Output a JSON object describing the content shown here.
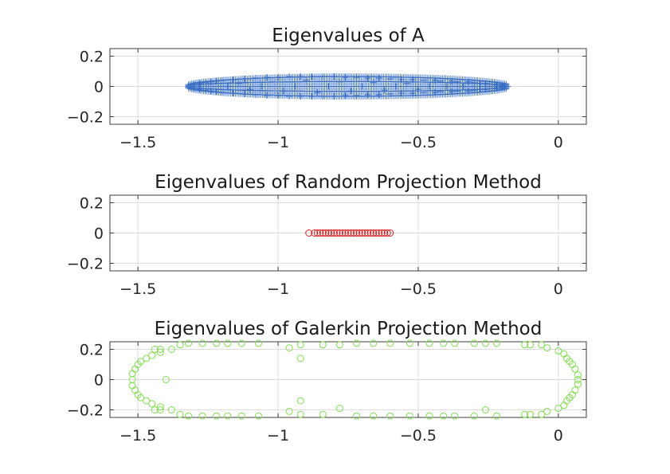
{
  "chart_data": [
    {
      "type": "scatter",
      "title": "Eigenvalues of A",
      "xlabel": "",
      "ylabel": "",
      "xlim": [
        -1.6,
        0.1
      ],
      "ylim": [
        -0.25,
        0.25
      ],
      "xticks": [
        -1.5,
        -1,
        -0.5,
        0
      ],
      "xtick_labels": [
        "−1.5",
        "−1",
        "−0.5",
        "0"
      ],
      "yticks": [
        0.2,
        0,
        -0.2
      ],
      "ytick_labels": [
        "0.2",
        "0",
        "−0.2"
      ],
      "grid": true,
      "marker": "+",
      "color": "#3a6fc4",
      "series": [
        {
          "points": [
            [
              -1.32,
              0.0
            ],
            [
              -1.3,
              0.01
            ],
            [
              -1.3,
              -0.01
            ],
            [
              -1.28,
              0.02
            ],
            [
              -1.28,
              -0.02
            ],
            [
              -1.26,
              0.025
            ],
            [
              -1.26,
              -0.025
            ],
            [
              -1.24,
              0.03
            ],
            [
              -1.24,
              -0.03
            ],
            [
              -1.22,
              0.035
            ],
            [
              -1.22,
              -0.035
            ],
            [
              -1.2,
              0.04
            ],
            [
              -1.2,
              -0.04
            ],
            [
              -1.18,
              0.0
            ],
            [
              -1.16,
              0.045
            ],
            [
              -1.16,
              -0.045
            ],
            [
              -1.14,
              0.02
            ],
            [
              -1.12,
              0.05
            ],
            [
              -1.12,
              -0.05
            ],
            [
              -1.1,
              -0.02
            ],
            [
              -1.08,
              0.055
            ],
            [
              -1.08,
              -0.055
            ],
            [
              -1.06,
              0.0
            ],
            [
              -1.04,
              0.06
            ],
            [
              -1.04,
              -0.06
            ],
            [
              -1.02,
              0.03
            ],
            [
              -1.0,
              0.06
            ],
            [
              -1.0,
              -0.06
            ],
            [
              -0.98,
              -0.03
            ],
            [
              -0.96,
              0.065
            ],
            [
              -0.96,
              -0.065
            ],
            [
              -0.94,
              0.0
            ],
            [
              -0.92,
              0.065
            ],
            [
              -0.92,
              -0.065
            ],
            [
              -0.9,
              0.04
            ],
            [
              -0.88,
              0.065
            ],
            [
              -0.88,
              -0.065
            ],
            [
              -0.86,
              -0.04
            ],
            [
              -0.84,
              0.065
            ],
            [
              -0.84,
              -0.065
            ],
            [
              -0.82,
              0.0
            ],
            [
              -0.8,
              0.065
            ],
            [
              -0.8,
              -0.065
            ],
            [
              -0.78,
              0.03
            ],
            [
              -0.76,
              0.06
            ],
            [
              -0.76,
              -0.06
            ],
            [
              -0.74,
              -0.03
            ],
            [
              -0.72,
              0.06
            ],
            [
              -0.72,
              -0.06
            ],
            [
              -0.7,
              0.0
            ],
            [
              -0.68,
              0.055
            ],
            [
              -0.68,
              -0.055
            ],
            [
              -0.66,
              0.025
            ],
            [
              -0.64,
              0.055
            ],
            [
              -0.64,
              -0.055
            ],
            [
              -0.62,
              -0.025
            ],
            [
              -0.6,
              0.05
            ],
            [
              -0.6,
              -0.05
            ],
            [
              -0.58,
              0.0
            ],
            [
              -0.56,
              0.045
            ],
            [
              -0.56,
              -0.045
            ],
            [
              -0.54,
              0.02
            ],
            [
              -0.52,
              0.045
            ],
            [
              -0.52,
              -0.045
            ],
            [
              -0.5,
              -0.02
            ],
            [
              -0.48,
              0.04
            ],
            [
              -0.48,
              -0.04
            ],
            [
              -0.46,
              0.0
            ],
            [
              -0.44,
              0.04
            ],
            [
              -0.44,
              -0.04
            ],
            [
              -0.42,
              0.035
            ],
            [
              -0.42,
              -0.035
            ],
            [
              -0.4,
              0.0
            ],
            [
              -0.38,
              0.035
            ],
            [
              -0.38,
              -0.035
            ],
            [
              -0.36,
              0.03
            ],
            [
              -0.36,
              -0.03
            ],
            [
              -0.34,
              0.0
            ],
            [
              -0.32,
              0.03
            ],
            [
              -0.32,
              -0.03
            ],
            [
              -0.3,
              0.025
            ],
            [
              -0.3,
              -0.025
            ],
            [
              -0.28,
              0.02
            ],
            [
              -0.28,
              -0.02
            ],
            [
              -0.26,
              0.02
            ],
            [
              -0.26,
              -0.02
            ],
            [
              -0.24,
              0.015
            ],
            [
              -0.24,
              -0.015
            ],
            [
              -0.22,
              0.01
            ],
            [
              -0.22,
              -0.01
            ],
            [
              -0.2,
              0.005
            ],
            [
              -0.2,
              -0.005
            ],
            [
              -0.18,
              0.0
            ]
          ]
        }
      ]
    },
    {
      "type": "scatter",
      "title": "Eigenvalues of Random Projection Method",
      "xlabel": "",
      "ylabel": "",
      "xlim": [
        -1.6,
        0.1
      ],
      "ylim": [
        -0.25,
        0.25
      ],
      "xticks": [
        -1.5,
        -1,
        -0.5,
        0
      ],
      "xtick_labels": [
        "−1.5",
        "−1",
        "−0.5",
        "0"
      ],
      "yticks": [
        0.2,
        0,
        -0.2
      ],
      "ytick_labels": [
        "0.2",
        "0",
        "−0.2"
      ],
      "grid": true,
      "marker": "o",
      "color": "#d62020",
      "series": [
        {
          "points": [
            [
              -0.89,
              0
            ],
            [
              -0.87,
              0
            ],
            [
              -0.86,
              0
            ],
            [
              -0.85,
              0
            ],
            [
              -0.84,
              0
            ],
            [
              -0.83,
              0
            ],
            [
              -0.82,
              0
            ],
            [
              -0.81,
              0
            ],
            [
              -0.8,
              0
            ],
            [
              -0.79,
              0
            ],
            [
              -0.78,
              0
            ],
            [
              -0.77,
              0
            ],
            [
              -0.76,
              0
            ],
            [
              -0.75,
              0
            ],
            [
              -0.74,
              0
            ],
            [
              -0.73,
              0
            ],
            [
              -0.72,
              0
            ],
            [
              -0.71,
              0
            ],
            [
              -0.7,
              0
            ],
            [
              -0.69,
              0
            ],
            [
              -0.68,
              0
            ],
            [
              -0.67,
              0
            ],
            [
              -0.66,
              0
            ],
            [
              -0.65,
              0
            ],
            [
              -0.64,
              0
            ],
            [
              -0.63,
              0
            ],
            [
              -0.62,
              0
            ],
            [
              -0.61,
              0
            ],
            [
              -0.6,
              0
            ]
          ]
        }
      ]
    },
    {
      "type": "scatter",
      "title": "Eigenvalues of Galerkin Projection Method",
      "xlabel": "",
      "ylabel": "",
      "xlim": [
        -1.6,
        0.1
      ],
      "ylim": [
        -0.25,
        0.25
      ],
      "xticks": [
        -1.5,
        -1,
        -0.5,
        0
      ],
      "xtick_labels": [
        "−1.5",
        "−1",
        "−0.5",
        "0"
      ],
      "yticks": [
        0.2,
        0,
        -0.2
      ],
      "ytick_labels": [
        "0.2",
        "0",
        "−0.2"
      ],
      "grid": true,
      "marker": "o",
      "color": "#7ee04a",
      "series": [
        {
          "points": [
            [
              -1.52,
              0.0
            ],
            [
              -1.52,
              0.04
            ],
            [
              -1.52,
              -0.04
            ],
            [
              -1.51,
              0.07
            ],
            [
              -1.51,
              -0.07
            ],
            [
              -1.5,
              0.1
            ],
            [
              -1.5,
              -0.1
            ],
            [
              -1.49,
              0.12
            ],
            [
              -1.49,
              -0.12
            ],
            [
              -1.47,
              0.14
            ],
            [
              -1.47,
              -0.14
            ],
            [
              -1.45,
              0.16
            ],
            [
              -1.45,
              -0.16
            ],
            [
              -1.42,
              0.18
            ],
            [
              -1.42,
              -0.18
            ],
            [
              -1.38,
              0.2
            ],
            [
              -1.38,
              -0.2
            ],
            [
              -1.35,
              0.23
            ],
            [
              -1.35,
              -0.23
            ],
            [
              -1.32,
              0.24
            ],
            [
              -1.32,
              -0.24
            ],
            [
              -1.27,
              0.24
            ],
            [
              -1.27,
              -0.24
            ],
            [
              -1.22,
              0.24
            ],
            [
              -1.22,
              -0.24
            ],
            [
              -1.18,
              0.24
            ],
            [
              -1.18,
              -0.24
            ],
            [
              -1.13,
              0.24
            ],
            [
              -1.13,
              -0.24
            ],
            [
              -1.07,
              0.24
            ],
            [
              -1.07,
              -0.24
            ],
            [
              -1.42,
              0.2
            ],
            [
              -1.42,
              -0.2
            ],
            [
              -1.44,
              0.2
            ],
            [
              -1.44,
              -0.2
            ],
            [
              -1.4,
              0.0
            ],
            [
              -0.96,
              0.21
            ],
            [
              -0.96,
              -0.21
            ],
            [
              -0.92,
              0.14
            ],
            [
              -0.92,
              -0.14
            ],
            [
              -0.92,
              0.23
            ],
            [
              -0.92,
              -0.23
            ],
            [
              -0.84,
              0.23
            ],
            [
              -0.84,
              -0.23
            ],
            [
              -0.78,
              0.23
            ],
            [
              -0.78,
              -0.19
            ],
            [
              -0.72,
              0.24
            ],
            [
              -0.72,
              -0.24
            ],
            [
              -0.66,
              0.24
            ],
            [
              -0.66,
              -0.24
            ],
            [
              -0.6,
              0.24
            ],
            [
              -0.6,
              -0.24
            ],
            [
              -0.53,
              0.24
            ],
            [
              -0.53,
              -0.24
            ],
            [
              -0.46,
              0.24
            ],
            [
              -0.46,
              -0.24
            ],
            [
              -0.41,
              0.24
            ],
            [
              -0.41,
              -0.24
            ],
            [
              -0.37,
              0.24
            ],
            [
              -0.37,
              -0.24
            ],
            [
              -0.3,
              0.24
            ],
            [
              -0.3,
              -0.24
            ],
            [
              -0.26,
              0.24
            ],
            [
              -0.26,
              -0.2
            ],
            [
              -0.22,
              0.24
            ],
            [
              -0.22,
              -0.24
            ],
            [
              -0.12,
              0.23
            ],
            [
              -0.12,
              -0.23
            ],
            [
              -0.1,
              0.23
            ],
            [
              -0.1,
              -0.23
            ],
            [
              -0.06,
              0.23
            ],
            [
              -0.06,
              -0.23
            ],
            [
              -0.04,
              0.21
            ],
            [
              -0.04,
              -0.21
            ],
            [
              0.0,
              0.19
            ],
            [
              0.0,
              -0.19
            ],
            [
              0.02,
              0.17
            ],
            [
              0.02,
              -0.17
            ],
            [
              0.03,
              0.14
            ],
            [
              0.03,
              -0.14
            ],
            [
              0.04,
              0.12
            ],
            [
              0.04,
              -0.12
            ],
            [
              0.05,
              0.1
            ],
            [
              0.05,
              -0.1
            ],
            [
              0.06,
              0.07
            ],
            [
              0.06,
              -0.07
            ],
            [
              0.07,
              0.03
            ],
            [
              0.07,
              -0.03
            ],
            [
              0.07,
              0.0
            ]
          ]
        }
      ]
    }
  ]
}
